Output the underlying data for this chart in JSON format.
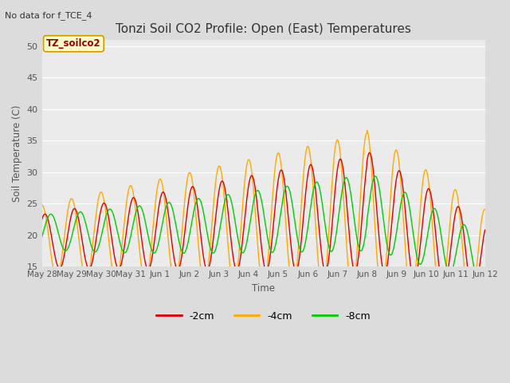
{
  "title": "Tonzi Soil CO2 Profile: Open (East) Temperatures",
  "subtitle": "No data for f_TCE_4",
  "ylabel": "Soil Temperature (C)",
  "xlabel": "Time",
  "ylim": [
    15,
    51
  ],
  "yticks": [
    15,
    20,
    25,
    30,
    35,
    40,
    45,
    50
  ],
  "fig_bg_color": "#e8e8e8",
  "plot_bg_color": "#eeeeee",
  "legend_label": "TZ_soilco2",
  "lines": [
    {
      "label": "-2cm",
      "color": "#dd0000"
    },
    {
      "label": "-4cm",
      "color": "#ffaa00"
    },
    {
      "label": "-8cm",
      "color": "#00cc00"
    }
  ],
  "x_tick_labels": [
    "May 28",
    "May 29",
    "May 30",
    "May 31",
    "Jun 1",
    "Jun 2",
    "Jun 3",
    "Jun 4",
    "Jun 5",
    "Jun 6",
    "Jun 7",
    "Jun 8",
    "Jun 9",
    "Jun 10",
    "Jun 11",
    "Jun 12"
  ],
  "num_days": 15,
  "points_per_day": 144
}
